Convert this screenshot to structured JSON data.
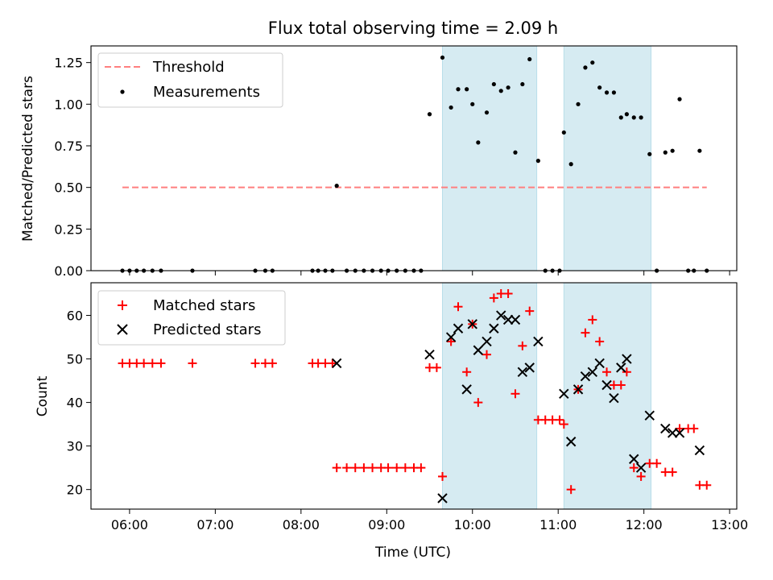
{
  "figure": {
    "title": "Flux total observing time = 2.09 h",
    "xlabel": "Time (UTC)"
  },
  "x_tick_labels": [
    "06:00",
    "07:00",
    "08:00",
    "09:00",
    "10:00",
    "11:00",
    "12:00",
    "13:00"
  ],
  "chart_data": [
    {
      "type": "scatter",
      "title": "Flux total observing time = 2.09 h",
      "xlabel": "",
      "ylabel": "Matched/Predicted stars",
      "xlim": [
        "05:33",
        "13:05"
      ],
      "ylim": [
        0,
        1.35
      ],
      "y_ticks": [
        "0.00",
        "0.25",
        "0.50",
        "0.75",
        "1.00",
        "1.25"
      ],
      "legend": {
        "position": "top-left",
        "entries": [
          "Threshold",
          "Measurements"
        ]
      },
      "shaded_intervals": [
        [
          "09:39",
          "10:45"
        ],
        [
          "11:04",
          "12:05"
        ]
      ],
      "shade_color": "#add8e6",
      "threshold": {
        "name": "Threshold",
        "y": 0.5,
        "x_start": "05:55",
        "x_end": "12:44",
        "color": "#ff7f7f",
        "style": "dashed"
      },
      "series": [
        {
          "name": "Measurements",
          "marker": "dot",
          "color": "#000000",
          "points": [
            [
              "05:55",
              0
            ],
            [
              "06:00",
              0
            ],
            [
              "06:05",
              0
            ],
            [
              "06:10",
              0
            ],
            [
              "06:16",
              0
            ],
            [
              "06:22",
              0
            ],
            [
              "06:44",
              0
            ],
            [
              "07:28",
              0
            ],
            [
              "07:35",
              0
            ],
            [
              "07:40",
              0
            ],
            [
              "08:08",
              0
            ],
            [
              "08:12",
              0
            ],
            [
              "08:17",
              0
            ],
            [
              "08:22",
              0
            ],
            [
              "08:25",
              0.51
            ],
            [
              "08:32",
              0
            ],
            [
              "08:38",
              0
            ],
            [
              "08:44",
              0
            ],
            [
              "08:50",
              0
            ],
            [
              "08:56",
              0
            ],
            [
              "09:01",
              0
            ],
            [
              "09:07",
              0
            ],
            [
              "09:13",
              0
            ],
            [
              "09:19",
              0
            ],
            [
              "09:24",
              0
            ],
            [
              "09:30",
              0.94
            ],
            [
              "09:39",
              1.28
            ],
            [
              "09:45",
              0.98
            ],
            [
              "09:50",
              1.09
            ],
            [
              "09:56",
              1.09
            ],
            [
              "10:00",
              1.0
            ],
            [
              "10:04",
              0.77
            ],
            [
              "10:10",
              0.95
            ],
            [
              "10:15",
              1.12
            ],
            [
              "10:20",
              1.08
            ],
            [
              "10:25",
              1.1
            ],
            [
              "10:30",
              0.71
            ],
            [
              "10:35",
              1.12
            ],
            [
              "10:40",
              1.27
            ],
            [
              "10:46",
              0.66
            ],
            [
              "10:51",
              0
            ],
            [
              "10:56",
              0
            ],
            [
              "11:01",
              0
            ],
            [
              "11:04",
              0.83
            ],
            [
              "11:09",
              0.64
            ],
            [
              "11:14",
              1.0
            ],
            [
              "11:19",
              1.22
            ],
            [
              "11:24",
              1.25
            ],
            [
              "11:29",
              1.1
            ],
            [
              "11:34",
              1.07
            ],
            [
              "11:39",
              1.07
            ],
            [
              "11:44",
              0.92
            ],
            [
              "11:48",
              0.94
            ],
            [
              "11:53",
              0.92
            ],
            [
              "11:58",
              0.92
            ],
            [
              "12:04",
              0.7
            ],
            [
              "12:09",
              0
            ],
            [
              "12:15",
              0.71
            ],
            [
              "12:20",
              0.72
            ],
            [
              "12:25",
              1.03
            ],
            [
              "12:31",
              0
            ],
            [
              "12:35",
              0
            ],
            [
              "12:39",
              0.72
            ],
            [
              "12:44",
              0
            ]
          ]
        }
      ]
    },
    {
      "type": "scatter",
      "xlabel": "Time (UTC)",
      "ylabel": "Count",
      "xlim": [
        "05:33",
        "13:05"
      ],
      "ylim": [
        15.5,
        67.5
      ],
      "y_ticks": [
        "20",
        "30",
        "40",
        "50",
        "60"
      ],
      "legend": {
        "position": "top-left",
        "entries": [
          "Matched stars",
          "Predicted stars"
        ]
      },
      "shaded_intervals": [
        [
          "09:39",
          "10:45"
        ],
        [
          "11:04",
          "12:05"
        ]
      ],
      "shade_color": "#add8e6",
      "series": [
        {
          "name": "Matched stars",
          "marker": "plus",
          "color": "#ff0000",
          "points": [
            [
              "05:55",
              49
            ],
            [
              "06:00",
              49
            ],
            [
              "06:05",
              49
            ],
            [
              "06:10",
              49
            ],
            [
              "06:16",
              49
            ],
            [
              "06:22",
              49
            ],
            [
              "06:44",
              49
            ],
            [
              "07:28",
              49
            ],
            [
              "07:35",
              49
            ],
            [
              "07:40",
              49
            ],
            [
              "08:08",
              49
            ],
            [
              "08:12",
              49
            ],
            [
              "08:17",
              49
            ],
            [
              "08:22",
              49
            ],
            [
              "08:25",
              25
            ],
            [
              "08:32",
              25
            ],
            [
              "08:38",
              25
            ],
            [
              "08:44",
              25
            ],
            [
              "08:50",
              25
            ],
            [
              "08:56",
              25
            ],
            [
              "09:01",
              25
            ],
            [
              "09:07",
              25
            ],
            [
              "09:13",
              25
            ],
            [
              "09:19",
              25
            ],
            [
              "09:24",
              25
            ],
            [
              "09:30",
              48
            ],
            [
              "09:35",
              48
            ],
            [
              "09:39",
              23
            ],
            [
              "09:45",
              54
            ],
            [
              "09:50",
              62
            ],
            [
              "09:56",
              47
            ],
            [
              "10:00",
              58
            ],
            [
              "10:04",
              40
            ],
            [
              "10:10",
              51
            ],
            [
              "10:15",
              64
            ],
            [
              "10:20",
              65
            ],
            [
              "10:25",
              65
            ],
            [
              "10:30",
              42
            ],
            [
              "10:35",
              53
            ],
            [
              "10:40",
              61
            ],
            [
              "10:46",
              36
            ],
            [
              "10:51",
              36
            ],
            [
              "10:56",
              36
            ],
            [
              "11:01",
              36
            ],
            [
              "11:04",
              35
            ],
            [
              "11:09",
              20
            ],
            [
              "11:14",
              43
            ],
            [
              "11:19",
              56
            ],
            [
              "11:24",
              59
            ],
            [
              "11:29",
              54
            ],
            [
              "11:34",
              47
            ],
            [
              "11:39",
              44
            ],
            [
              "11:44",
              44
            ],
            [
              "11:48",
              47
            ],
            [
              "11:53",
              25
            ],
            [
              "11:58",
              23
            ],
            [
              "12:04",
              26
            ],
            [
              "12:09",
              26
            ],
            [
              "12:15",
              24
            ],
            [
              "12:20",
              24
            ],
            [
              "12:25",
              34
            ],
            [
              "12:31",
              34
            ],
            [
              "12:35",
              34
            ],
            [
              "12:39",
              21
            ],
            [
              "12:44",
              21
            ]
          ]
        },
        {
          "name": "Predicted stars",
          "marker": "x",
          "color": "#000000",
          "points": [
            [
              "08:25",
              49
            ],
            [
              "09:30",
              51
            ],
            [
              "09:39",
              18
            ],
            [
              "09:45",
              55
            ],
            [
              "09:50",
              57
            ],
            [
              "09:56",
              43
            ],
            [
              "10:00",
              58
            ],
            [
              "10:04",
              52
            ],
            [
              "10:10",
              54
            ],
            [
              "10:15",
              57
            ],
            [
              "10:20",
              60
            ],
            [
              "10:25",
              59
            ],
            [
              "10:30",
              59
            ],
            [
              "10:35",
              47
            ],
            [
              "10:40",
              48
            ],
            [
              "10:46",
              54
            ],
            [
              "11:04",
              42
            ],
            [
              "11:09",
              31
            ],
            [
              "11:14",
              43
            ],
            [
              "11:19",
              46
            ],
            [
              "11:24",
              47
            ],
            [
              "11:29",
              49
            ],
            [
              "11:34",
              44
            ],
            [
              "11:39",
              41
            ],
            [
              "11:44",
              48
            ],
            [
              "11:48",
              50
            ],
            [
              "11:53",
              27
            ],
            [
              "11:58",
              25
            ],
            [
              "12:04",
              37
            ],
            [
              "12:15",
              34
            ],
            [
              "12:20",
              33
            ],
            [
              "12:25",
              33
            ],
            [
              "12:39",
              29
            ]
          ]
        }
      ]
    }
  ]
}
